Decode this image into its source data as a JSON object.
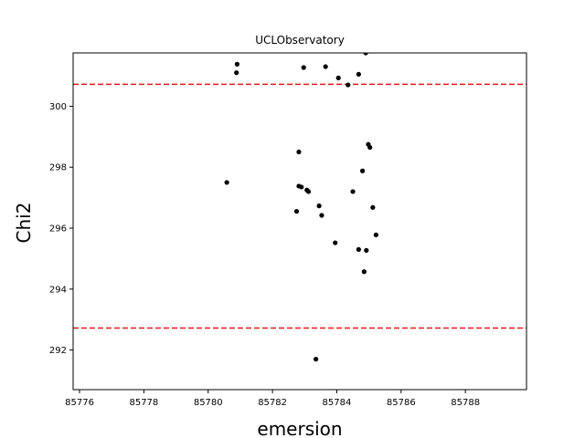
{
  "chart_data": {
    "type": "scatter",
    "title": "UCLObservatory",
    "xlabel": "emersion",
    "ylabel": "Chi2",
    "xlim": [
      85775.8,
      85789.9
    ],
    "ylim": [
      290.7,
      301.75
    ],
    "xticks": [
      85776,
      85778,
      85780,
      85782,
      85784,
      85786,
      85788
    ],
    "yticks": [
      292,
      294,
      296,
      298,
      300
    ],
    "grid": false,
    "point_color": "#000000",
    "reference_lines": [
      {
        "y": 300.72,
        "color": "#e41a1c",
        "style": "dashed"
      },
      {
        "y": 292.72,
        "color": "#e41a1c",
        "style": "dashed"
      }
    ],
    "points": [
      {
        "x": 85780.9,
        "y": 301.38
      },
      {
        "x": 85780.88,
        "y": 301.1
      },
      {
        "x": 85782.97,
        "y": 301.27
      },
      {
        "x": 85783.65,
        "y": 301.3
      },
      {
        "x": 85784.05,
        "y": 300.93
      },
      {
        "x": 85784.68,
        "y": 301.05
      },
      {
        "x": 85784.9,
        "y": 301.75
      },
      {
        "x": 85784.35,
        "y": 300.7
      },
      {
        "x": 85780.58,
        "y": 297.5
      },
      {
        "x": 85782.82,
        "y": 298.5
      },
      {
        "x": 85782.82,
        "y": 297.38
      },
      {
        "x": 85782.9,
        "y": 297.35
      },
      {
        "x": 85783.07,
        "y": 297.25
      },
      {
        "x": 85783.12,
        "y": 297.2
      },
      {
        "x": 85782.75,
        "y": 296.55
      },
      {
        "x": 85783.45,
        "y": 296.73
      },
      {
        "x": 85783.53,
        "y": 296.42
      },
      {
        "x": 85783.95,
        "y": 295.52
      },
      {
        "x": 85784.5,
        "y": 297.2
      },
      {
        "x": 85784.8,
        "y": 297.88
      },
      {
        "x": 85784.98,
        "y": 298.75
      },
      {
        "x": 85785.03,
        "y": 298.65
      },
      {
        "x": 85785.12,
        "y": 296.68
      },
      {
        "x": 85785.22,
        "y": 295.78
      },
      {
        "x": 85784.68,
        "y": 295.3
      },
      {
        "x": 85784.92,
        "y": 295.27
      },
      {
        "x": 85784.85,
        "y": 294.57
      },
      {
        "x": 85783.35,
        "y": 291.7
      }
    ]
  }
}
